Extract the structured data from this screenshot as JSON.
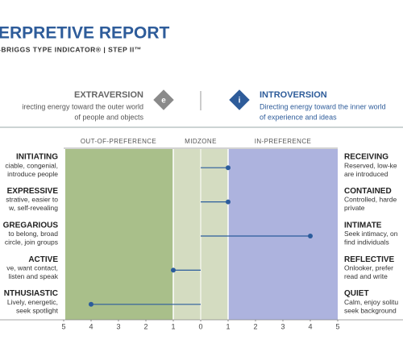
{
  "header": {
    "title": "ERPRETIVE REPORT",
    "subtitle": "-BRIGGS TYPE INDICATOR®   |   STEP II™"
  },
  "poles": {
    "left": {
      "name": "EXTRAVERSION",
      "icon": "e",
      "description": [
        "irecting energy toward the outer world",
        "of people and objects"
      ]
    },
    "right": {
      "name": "INTROVERSION",
      "icon": "i",
      "description": [
        "Directing energy toward the inner world",
        "of experience and ideas"
      ]
    }
  },
  "chart": {
    "zones": [
      "OUT-OF-PREFERENCE",
      "MIDZONE",
      "IN-PREFERENCE"
    ],
    "xlim": [
      -5,
      5
    ],
    "xticks": [
      {
        "value": -5,
        "label": "5"
      },
      {
        "value": -4,
        "label": "4"
      },
      {
        "value": -3,
        "label": "3"
      },
      {
        "value": -2,
        "label": "2"
      },
      {
        "value": -1,
        "label": "1"
      },
      0,
      1,
      2,
      3,
      4,
      5
    ],
    "facets": [
      {
        "left": {
          "name": "INITIATING",
          "description": [
            "ciable, congenial,",
            "introduce people"
          ]
        },
        "right": {
          "name": "RECEIVING",
          "description": [
            "Reserved, low-ke",
            "are introduced"
          ]
        },
        "value": 1
      },
      {
        "left": {
          "name": "EXPRESSIVE",
          "description": [
            "strative, easier to",
            "w, self-revealing"
          ]
        },
        "right": {
          "name": "CONTAINED",
          "description": [
            "Controlled, harde",
            "private"
          ]
        },
        "value": 1
      },
      {
        "left": {
          "name": "GREGARIOUS",
          "description": [
            "to belong, broad",
            "circle, join groups"
          ]
        },
        "right": {
          "name": "INTIMATE",
          "description": [
            "Seek intimacy, on",
            "find individuals"
          ]
        },
        "value": 4
      },
      {
        "left": {
          "name": "ACTIVE",
          "description": [
            "ve, want contact,",
            "listen and speak"
          ]
        },
        "right": {
          "name": "REFLECTIVE",
          "description": [
            "Onlooker, prefer",
            "read and write"
          ]
        },
        "value": -1
      },
      {
        "left": {
          "name": "NTHUSIASTIC",
          "description": [
            "Lively, energetic,",
            "seek spotlight"
          ]
        },
        "right": {
          "name": "QUIET",
          "description": [
            "Calm, enjoy solitu",
            "seek background"
          ]
        },
        "value": -4
      }
    ]
  }
}
